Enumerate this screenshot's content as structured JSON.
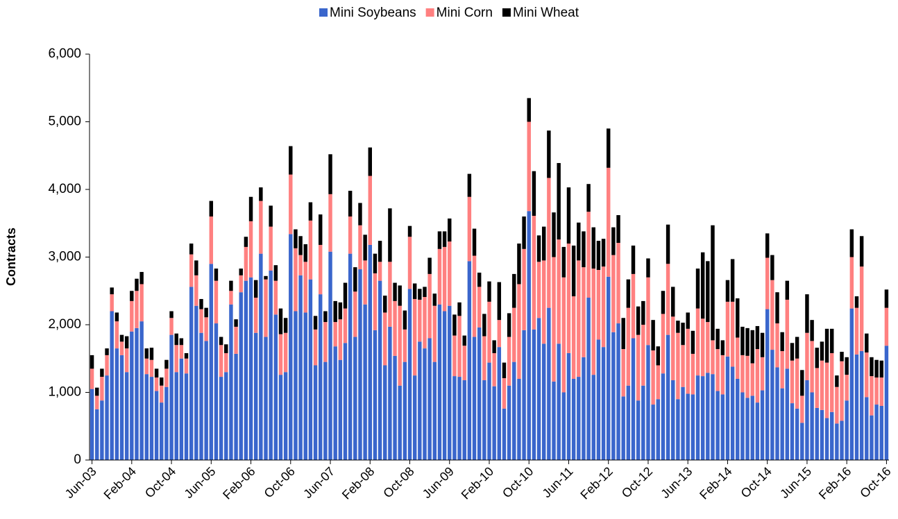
{
  "chart_data": {
    "type": "bar",
    "stacked": true,
    "ylabel": "Contracts",
    "legend": "top",
    "categories": [
      "Jun-03",
      null,
      null,
      null,
      null,
      null,
      null,
      null,
      "Feb-04",
      null,
      null,
      null,
      null,
      null,
      null,
      null,
      "Oct-04",
      null,
      null,
      null,
      null,
      null,
      null,
      null,
      "Jun-05",
      null,
      null,
      null,
      null,
      null,
      null,
      null,
      "Feb-06",
      null,
      null,
      null,
      null,
      null,
      null,
      null,
      "Oct-06",
      null,
      null,
      null,
      null,
      null,
      null,
      null,
      "Jun-07",
      null,
      null,
      null,
      null,
      null,
      null,
      null,
      "Feb-08",
      null,
      null,
      null,
      null,
      null,
      null,
      null,
      "Oct-08",
      null,
      null,
      null,
      null,
      null,
      null,
      null,
      "Jun-09",
      null,
      null,
      null,
      null,
      null,
      null,
      null,
      "Feb-10",
      null,
      null,
      null,
      null,
      null,
      null,
      null,
      "Oct-10",
      null,
      null,
      null,
      null,
      null,
      null,
      null,
      "Jun-11",
      null,
      null,
      null,
      null,
      null,
      null,
      null,
      "Feb-12",
      null,
      null,
      null,
      null,
      null,
      null,
      null,
      "Oct-12",
      null,
      null,
      null,
      null,
      null,
      null,
      null,
      "Jun-13",
      null,
      null,
      null,
      null,
      null,
      null,
      null,
      "Feb-14",
      null,
      null,
      null,
      null,
      null,
      null,
      null,
      "Oct-14",
      null,
      null,
      null,
      null,
      null,
      null,
      null,
      "Jun-15",
      null,
      null,
      null,
      null,
      null,
      null,
      null,
      "Feb-16",
      null,
      null,
      null,
      null,
      null,
      null,
      null,
      "Oct-16"
    ],
    "series": [
      {
        "name": "Mini Soybeans",
        "color": "#3a66cc",
        "values": [
          1050,
          750,
          880,
          1250,
          2200,
          1650,
          1550,
          1300,
          1900,
          1950,
          2050,
          1270,
          1230,
          1020,
          850,
          1080,
          1850,
          1300,
          1500,
          1280,
          2560,
          2280,
          1880,
          1760,
          2900,
          2020,
          1230,
          1300,
          2300,
          1570,
          2480,
          2650,
          2700,
          1880,
          3050,
          1820,
          2800,
          2150,
          1260,
          1300,
          3340,
          2200,
          2730,
          2180,
          2670,
          1400,
          2450,
          1450,
          3080,
          1680,
          1480,
          1730,
          3050,
          1820,
          2820,
          2300,
          3180,
          1920,
          2650,
          1400,
          1970,
          1540,
          1100,
          1450,
          2530,
          1250,
          1750,
          1650,
          1800,
          1450,
          2300,
          2200,
          2280,
          1240,
          1230,
          1180,
          2940,
          1820,
          1960,
          1180,
          1440,
          1090,
          1670,
          760,
          1100,
          1450,
          1200,
          1920,
          3680,
          1930,
          2100,
          1720,
          2250,
          1160,
          1720,
          1000,
          1580,
          1200,
          1230,
          1520,
          2400,
          1260,
          1780,
          1670,
          2710,
          1890,
          2020,
          940,
          1100,
          1800,
          880,
          1100,
          1700,
          820,
          900,
          1280,
          1850,
          1180,
          900,
          1080,
          980,
          970,
          1250,
          1240,
          1290,
          1270,
          1020,
          970,
          1530,
          1380,
          1200,
          1000,
          920,
          950,
          850,
          1030,
          2230,
          1630,
          1370,
          1060,
          1350,
          840,
          760,
          550,
          1180,
          1000,
          770,
          740,
          620,
          710,
          540,
          580,
          880,
          2240,
          1560,
          1610,
          930,
          660,
          820,
          800,
          1690
        ]
      },
      {
        "name": "Mini Corn",
        "color": "#ff8080",
        "values": [
          300,
          200,
          350,
          300,
          250,
          400,
          200,
          350,
          450,
          550,
          550,
          230,
          250,
          200,
          250,
          270,
          250,
          400,
          200,
          220,
          480,
          450,
          350,
          350,
          700,
          630,
          470,
          280,
          200,
          400,
          250,
          500,
          830,
          520,
          780,
          850,
          650,
          500,
          600,
          580,
          880,
          930,
          300,
          750,
          870,
          530,
          730,
          590,
          850,
          360,
          600,
          510,
          550,
          670,
          650,
          650,
          1020,
          840,
          280,
          780,
          960,
          810,
          1180,
          480,
          770,
          1130,
          620,
          760,
          950,
          830,
          820,
          950,
          950,
          600,
          900,
          510,
          950,
          1200,
          600,
          650,
          900,
          490,
          400,
          450,
          720,
          800,
          1400,
          1200,
          1320,
          1680,
          830,
          1230,
          1920,
          1840,
          1540,
          1700,
          1620,
          1220,
          1720,
          1330,
          1270,
          1570,
          1030,
          1190,
          1610,
          1140,
          1190,
          700,
          1150,
          950,
          970,
          900,
          1000,
          800,
          500,
          880,
          1050,
          940,
          980,
          620,
          960,
          600,
          990,
          850,
          750,
          500,
          620,
          580,
          810,
          960,
          610,
          550,
          620,
          480,
          790,
          490,
          760,
          1030,
          650,
          550,
          1020,
          630,
          740,
          400,
          700,
          760,
          590,
          730,
          820,
          870,
          540,
          880,
          380,
          760,
          690,
          1250,
          660,
          580,
          400,
          420,
          560
        ]
      },
      {
        "name": "Mini Wheat",
        "color": "#000000",
        "values": [
          200,
          120,
          120,
          100,
          100,
          130,
          100,
          180,
          150,
          180,
          180,
          150,
          180,
          130,
          120,
          130,
          100,
          170,
          100,
          80,
          160,
          220,
          150,
          140,
          230,
          180,
          120,
          130,
          150,
          110,
          100,
          150,
          360,
          260,
          200,
          50,
          310,
          230,
          380,
          220,
          420,
          280,
          280,
          260,
          270,
          200,
          450,
          160,
          590,
          310,
          250,
          380,
          380,
          360,
          330,
          380,
          420,
          290,
          310,
          250,
          790,
          270,
          300,
          280,
          160,
          230,
          160,
          150,
          240,
          180,
          260,
          230,
          340,
          310,
          200,
          150,
          340,
          400,
          210,
          330,
          300,
          190,
          560,
          230,
          350,
          500,
          600,
          480,
          350,
          660,
          390,
          500,
          700,
          660,
          1130,
          450,
          830,
          750,
          560,
          530,
          410,
          610,
          430,
          410,
          580,
          410,
          410,
          460,
          420,
          420,
          420,
          350,
          280,
          450,
          280,
          340,
          580,
          440,
          180,
          330,
          240,
          340,
          590,
          980,
          900,
          1700,
          300,
          220,
          320,
          630,
          580,
          420,
          410,
          490,
          340,
          360,
          360,
          370,
          460,
          280,
          280,
          260,
          320,
          380,
          570,
          310,
          300,
          280,
          500,
          360,
          170,
          140,
          260,
          410,
          170,
          450,
          280,
          280,
          260,
          250,
          270
        ]
      }
    ],
    "ylim": [
      0,
      6000
    ],
    "yticks": [
      0,
      {
        "value": 1000,
        "label": "1,000"
      },
      {
        "value": 2000,
        "label": "2,000"
      },
      {
        "value": 3000,
        "label": "3,000"
      },
      {
        "value": 4000,
        "label": "4,000"
      },
      {
        "value": 5000,
        "label": "5,000"
      },
      {
        "value": 6000,
        "label": "6,000"
      }
    ]
  }
}
